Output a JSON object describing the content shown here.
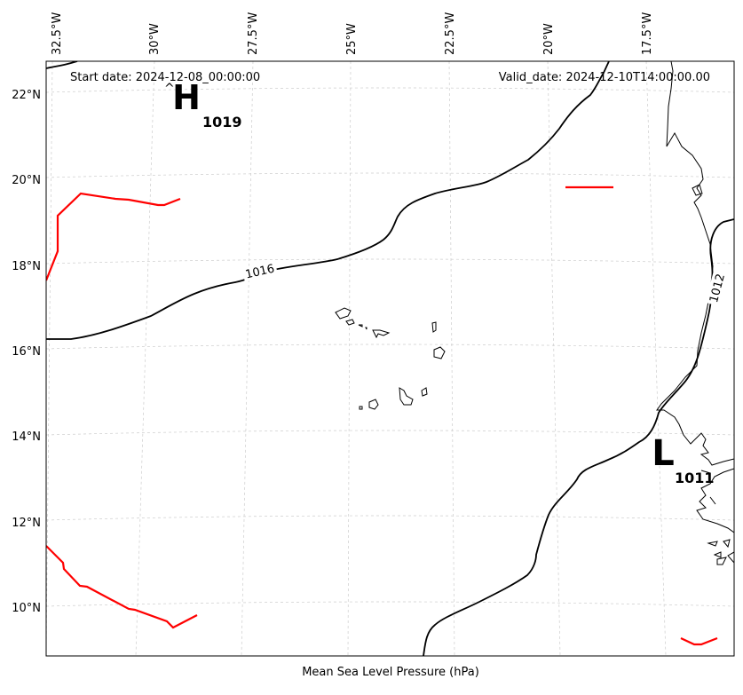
{
  "header": {
    "start_date": "Start date: 2024-12-08_00:00:00",
    "valid_date": "Valid_date: 2024-12-10T14:00:00.00"
  },
  "caption": "Mean Sea Level Pressure (hPa)",
  "longitude_labels": [
    "32.5°W",
    "30°W",
    "27.5°W",
    "25°W",
    "22.5°W",
    "20°W",
    "17.5°W"
  ],
  "latitude_labels": [
    "22°N",
    "20°N",
    "18°N",
    "16°N",
    "14°N",
    "12°N",
    "10°N"
  ],
  "pressure_centers": [
    {
      "type": "H",
      "value": "1019"
    },
    {
      "type": "L",
      "value": "1011"
    }
  ],
  "isobar_labels": [
    "1016",
    "1012"
  ],
  "colors": {
    "isobar": "#000000",
    "front_line": "#ff0000",
    "coastline": "#000000",
    "gridline": "#cccccc"
  }
}
